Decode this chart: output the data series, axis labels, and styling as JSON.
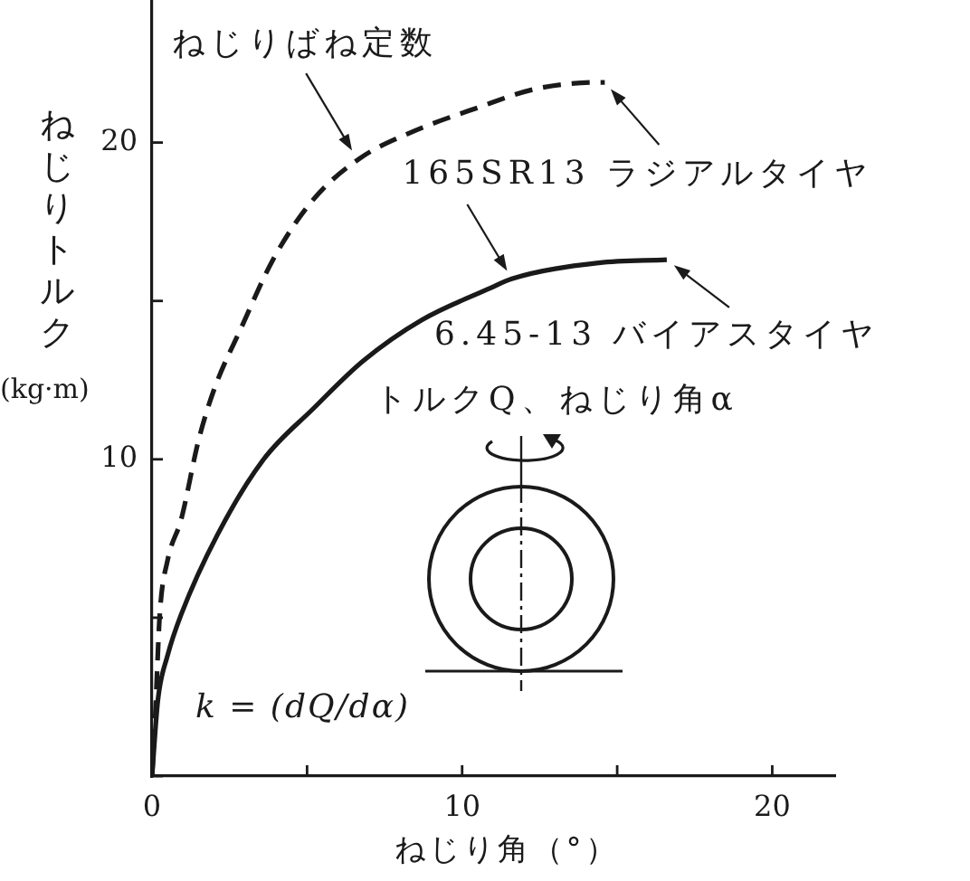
{
  "chart_data": {
    "type": "line",
    "xlabel": "ねじり角（°）",
    "ylabel": "ねじりトルク (kg·m)",
    "xlim": [
      0,
      22
    ],
    "ylim": [
      0,
      24.5
    ],
    "xticks": [
      0,
      {
        "value": 5,
        "label": null
      },
      10,
      {
        "value": 15,
        "label": null
      },
      20
    ],
    "yticks": [
      {
        "value": 0,
        "label": null
      },
      {
        "value": 5,
        "label": null
      },
      10,
      {
        "value": 15,
        "label": null
      },
      20
    ],
    "grid": false,
    "legend": false,
    "marker": "none",
    "series": [
      {
        "color": "#1a1a1a",
        "line_style": "dashed",
        "x": [
          0,
          0.1,
          0.25,
          0.5,
          0.94,
          1.5,
          2.0,
          2.9,
          3.9,
          5.2,
          6.7,
          8.3,
          10.5,
          12.4,
          14.4,
          14.6
        ],
        "values": [
          0,
          1.8,
          5.1,
          6.8,
          8.1,
          10.6,
          12.2,
          14.2,
          16.3,
          18.2,
          19.5,
          20.3,
          21.1,
          21.7,
          21.9,
          21.9
        ]
      },
      {
        "color": "#1a1a1a",
        "line_style": "solid",
        "x": [
          0,
          0.19,
          0.5,
          0.94,
          2.1,
          3.6,
          5.2,
          6.8,
          8.7,
          10.9,
          11.6,
          14.4,
          16.6
        ],
        "values": [
          0,
          2.4,
          3.8,
          5.1,
          7.6,
          10.0,
          11.6,
          13.1,
          14.4,
          15.4,
          15.7,
          16.2,
          16.3
        ]
      }
    ],
    "annotations": [
      {
        "text": "ねじりばね定数",
        "x": 6.6,
        "y": 19.5
      },
      {
        "text": "165SR13 ラジアルタイヤ",
        "x": 14.6,
        "y": 21.9
      },
      {
        "text": "6.45-13 バイアスタイヤ",
        "x": 16.6,
        "y": 16.3
      },
      "トルクQ、ねじり角α",
      "k = (dQ/dα)"
    ]
  }
}
